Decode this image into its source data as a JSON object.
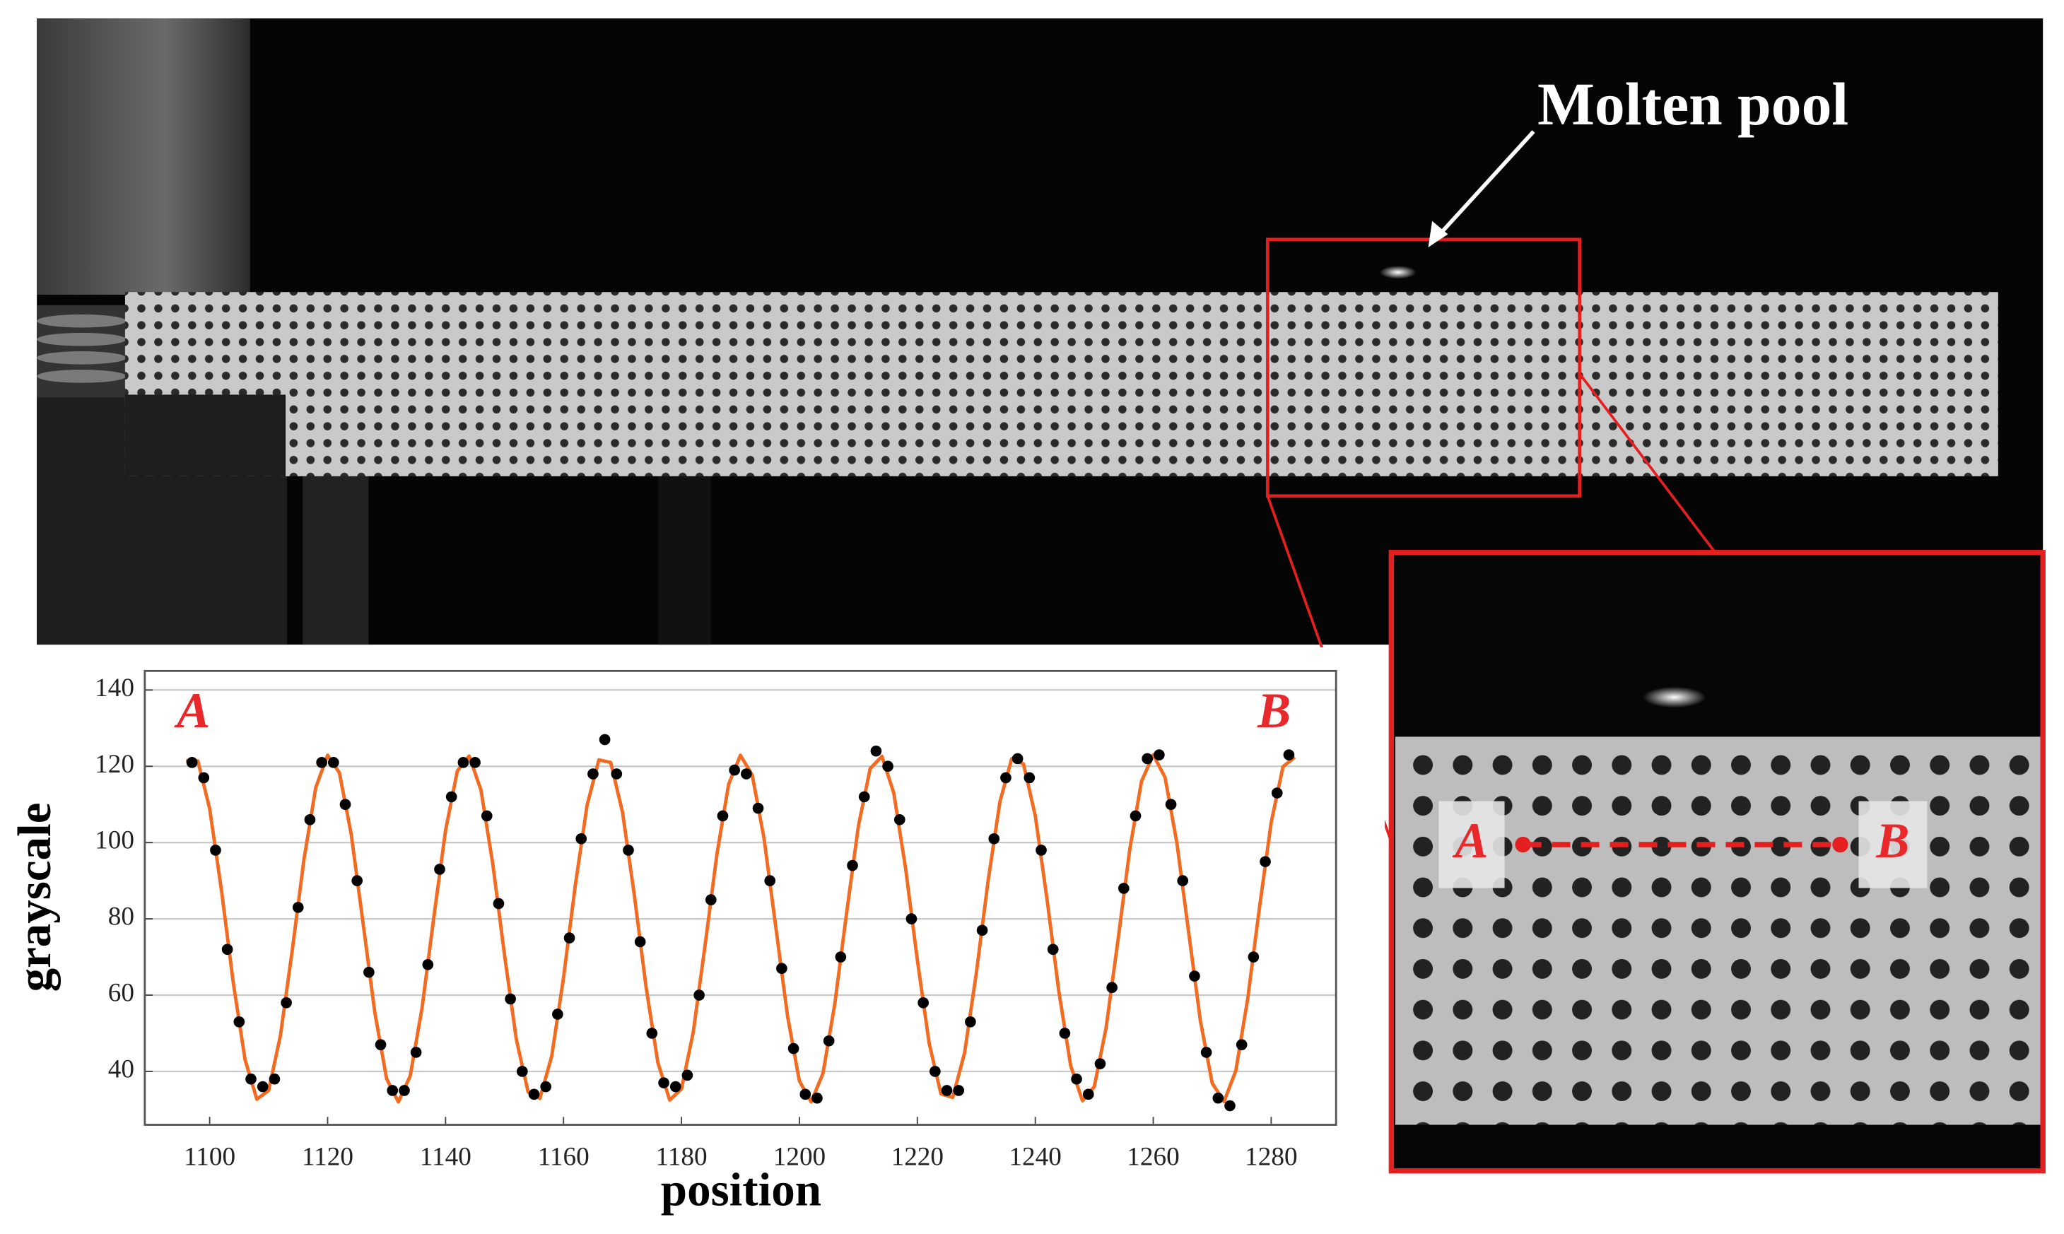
{
  "photo": {
    "annotation": "Molten pool",
    "zoom_labels": [
      "A",
      "B"
    ]
  },
  "chart_data": {
    "type": "line",
    "xlabel": "position",
    "ylabel": "grayscale",
    "annotations": [
      "A",
      "B"
    ],
    "xlim": [
      1089,
      1291
    ],
    "ylim": [
      26,
      145
    ],
    "xticks": [
      1100,
      1120,
      1140,
      1160,
      1180,
      1200,
      1220,
      1240,
      1260,
      1280
    ],
    "yticks": [
      40,
      60,
      80,
      100,
      120,
      140
    ],
    "grid": true,
    "series": [
      {
        "type": "scatter",
        "color": "#000000",
        "x": [
          1097,
          1099,
          1101,
          1103,
          1105,
          1107,
          1109,
          1111,
          1113,
          1115,
          1117,
          1119,
          1121,
          1123,
          1125,
          1127,
          1129,
          1131,
          1133,
          1135,
          1137,
          1139,
          1141,
          1143,
          1145,
          1147,
          1149,
          1151,
          1153,
          1155,
          1157,
          1159,
          1161,
          1163,
          1165,
          1167,
          1169,
          1171,
          1173,
          1175,
          1177,
          1179,
          1181,
          1183,
          1185,
          1187,
          1189,
          1191,
          1193,
          1195,
          1197,
          1199,
          1201,
          1203,
          1205,
          1207,
          1209,
          1211,
          1213,
          1215,
          1217,
          1219,
          1221,
          1223,
          1225,
          1227,
          1229,
          1231,
          1233,
          1235,
          1237,
          1239,
          1241,
          1243,
          1245,
          1247,
          1249,
          1251,
          1253,
          1255,
          1257,
          1259,
          1261,
          1263,
          1265,
          1267,
          1269,
          1271,
          1273,
          1275,
          1277,
          1279,
          1281,
          1283
        ],
        "values": [
          121,
          117,
          98,
          72,
          53,
          38,
          36,
          38,
          58,
          83,
          106,
          121,
          121,
          110,
          90,
          66,
          47,
          35,
          35,
          45,
          68,
          93,
          112,
          121,
          121,
          107,
          84,
          59,
          40,
          34,
          36,
          55,
          75,
          101,
          118,
          127,
          118,
          98,
          74,
          50,
          37,
          36,
          39,
          60,
          85,
          107,
          119,
          118,
          109,
          90,
          67,
          46,
          34,
          33,
          48,
          70,
          94,
          112,
          124,
          120,
          106,
          80,
          58,
          40,
          35,
          35,
          53,
          77,
          101,
          117,
          122,
          117,
          98,
          72,
          50,
          38,
          34,
          42,
          62,
          88,
          107,
          122,
          123,
          110,
          90,
          65,
          45,
          33,
          31,
          47,
          70,
          95,
          113,
          123
        ]
      },
      {
        "type": "line",
        "color": "#f26b21",
        "x": [
          1096,
          1098,
          1100,
          1102,
          1104,
          1106,
          1108,
          1110,
          1112,
          1114,
          1116,
          1118,
          1120,
          1122,
          1124,
          1126,
          1128,
          1130,
          1132,
          1134,
          1136,
          1138,
          1140,
          1142,
          1144,
          1146,
          1148,
          1150,
          1152,
          1154,
          1156,
          1158,
          1160,
          1162,
          1164,
          1166,
          1168,
          1170,
          1172,
          1174,
          1176,
          1178,
          1180,
          1182,
          1184,
          1186,
          1188,
          1190,
          1192,
          1194,
          1196,
          1198,
          1200,
          1202,
          1204,
          1206,
          1208,
          1210,
          1212,
          1214,
          1216,
          1218,
          1220,
          1222,
          1224,
          1226,
          1228,
          1230,
          1232,
          1234,
          1236,
          1238,
          1240,
          1242,
          1244,
          1246,
          1248,
          1250,
          1252,
          1254,
          1256,
          1258,
          1260,
          1262,
          1264,
          1266,
          1268,
          1270,
          1272,
          1274,
          1276,
          1278,
          1280,
          1282,
          1284
        ],
        "values": [
          121.4,
          121.4,
          108.9,
          87.5,
          63.3,
          43.1,
          32.7,
          35.0,
          49.4,
          71.7,
          95.7,
          114.5,
          122.9,
          118.3,
          102.2,
          79.0,
          55.5,
          38.1,
          32.0,
          38.8,
          56.5,
          80.3,
          103.2,
          118.8,
          122.7,
          113.8,
          94.5,
          70.5,
          48.4,
          34.6,
          32.9,
          44.0,
          64.5,
          88.8,
          109.8,
          121.7,
          121.0,
          108.0,
          86.3,
          62.1,
          42.3,
          32.5,
          35.4,
          50.3,
          73.0,
          96.8,
          115.3,
          122.9,
          117.7,
          101.1,
          77.8,
          54.4,
          37.5,
          32.0,
          39.5,
          57.7,
          81.5,
          104.3,
          119.4,
          122.6,
          113.0,
          93.3,
          69.2,
          47.4,
          34.1,
          33.2,
          44.8,
          65.8,
          90.0,
          110.7,
          122.0,
          120.6,
          107.0,
          85.0,
          60.9,
          41.5,
          32.3,
          36.0,
          51.4,
          74.2,
          98.0,
          116.0,
          123.0,
          117.1,
          100.0,
          76.5,
          53.2,
          36.9,
          32.1,
          40.2,
          58.9,
          82.8,
          105.3,
          119.9,
          122.4
        ]
      }
    ]
  }
}
